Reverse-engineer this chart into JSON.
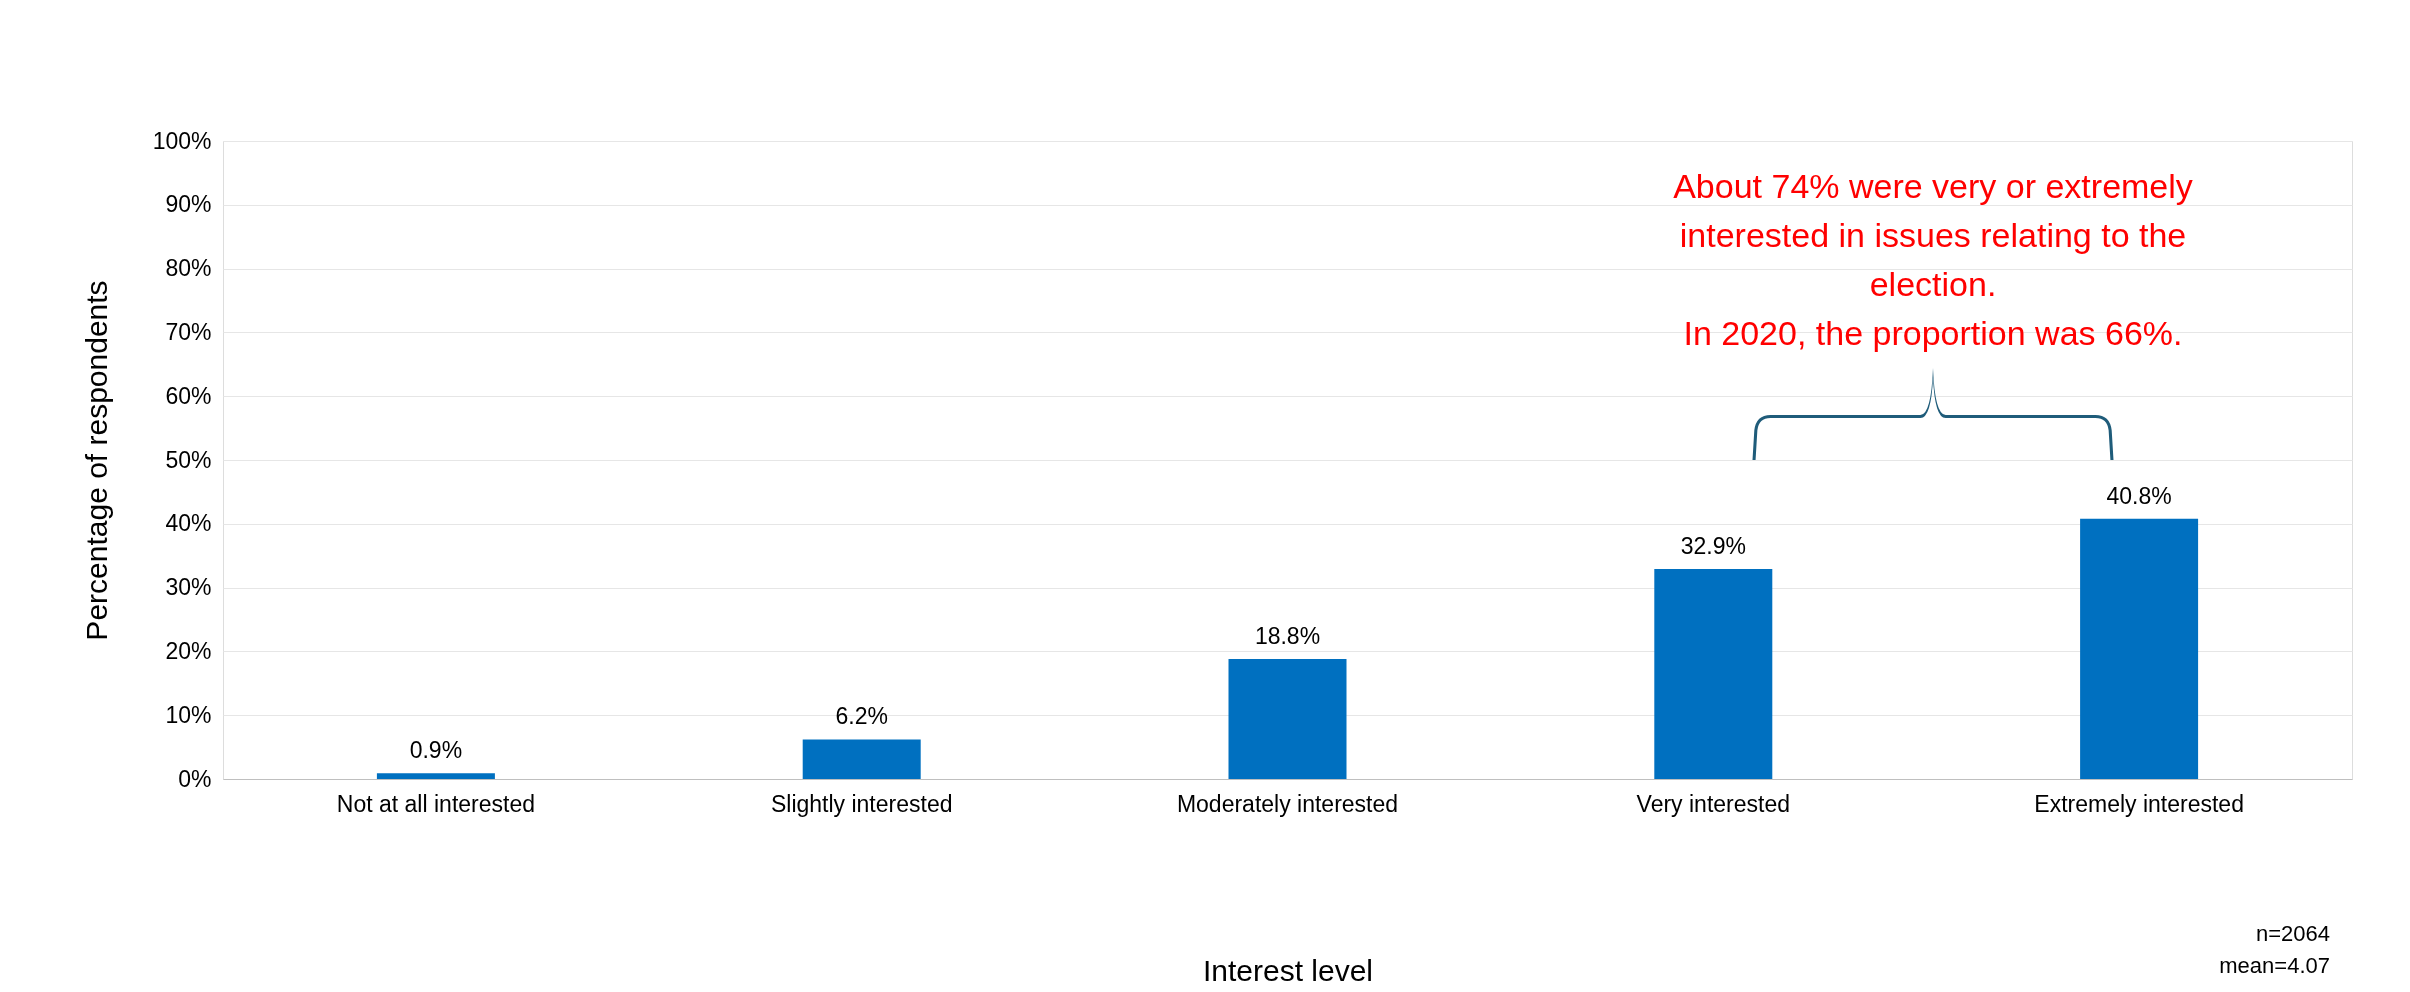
{
  "chart_data": {
    "type": "bar",
    "categories": [
      "Not at all interested",
      "Slightly interested",
      "Moderately interested",
      "Very interested",
      "Extremely interested"
    ],
    "values": [
      0.9,
      6.2,
      18.8,
      32.9,
      40.8
    ],
    "color": "#0070c0",
    "value_labels": [
      "0.9%",
      "6.2%",
      "18.8%",
      "32.9%",
      "40.8%"
    ],
    "xlabel": "Interest level",
    "ylabel": "Percentage of respondents",
    "ylim": [
      0,
      100
    ],
    "yticks": [
      {
        "value": 0,
        "label": "0%"
      },
      {
        "value": 10,
        "label": "10%"
      },
      {
        "value": 20,
        "label": "20%"
      },
      {
        "value": 30,
        "label": "30%"
      },
      {
        "value": 40,
        "label": "40%"
      },
      {
        "value": 50,
        "label": "50%"
      },
      {
        "value": 60,
        "label": "60%"
      },
      {
        "value": 70,
        "label": "70%"
      },
      {
        "value": 80,
        "label": "80%"
      },
      {
        "value": 90,
        "label": "90%"
      },
      {
        "value": 100,
        "label": "100%"
      }
    ],
    "grid": "y",
    "annotations": [
      "About 74% were very or extremely\ninterested in issues relating to the\nelection.\nIn 2020, the proportion was 66%.",
      "n=2064",
      "mean=4.07"
    ]
  }
}
